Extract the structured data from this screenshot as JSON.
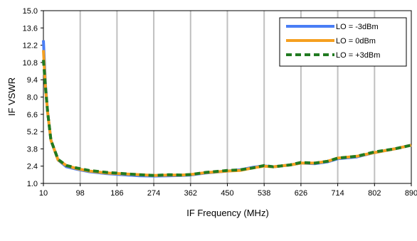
{
  "chart_data": {
    "type": "line",
    "title": "",
    "xlabel": "IF Frequency (MHz)",
    "ylabel": "IF VSWR",
    "xlim": [
      10,
      890
    ],
    "ylim": [
      1.0,
      15.0
    ],
    "x_ticks": [
      "10",
      "98",
      "186",
      "274",
      "362",
      "450",
      "538",
      "626",
      "714",
      "802",
      "890"
    ],
    "y_ticks": [
      "1.0",
      "2.4",
      "3.8",
      "5.2",
      "6.6",
      "8.0",
      "9.4",
      "10.8",
      "12.2",
      "13.6",
      "15.0"
    ],
    "grid": "vertical",
    "legend_position": "top-right",
    "series": [
      {
        "name": "LO = -3dBm",
        "color": "#4a7ef5",
        "style": "solid",
        "points": [
          [
            10,
            12.6
          ],
          [
            15,
            9.0
          ],
          [
            20,
            6.8
          ],
          [
            28,
            4.5
          ],
          [
            45,
            2.9
          ],
          [
            65,
            2.35
          ],
          [
            90,
            2.15
          ],
          [
            120,
            1.95
          ],
          [
            160,
            1.8
          ],
          [
            200,
            1.7
          ],
          [
            240,
            1.62
          ],
          [
            274,
            1.6
          ],
          [
            310,
            1.62
          ],
          [
            340,
            1.65
          ],
          [
            362,
            1.68
          ],
          [
            400,
            1.85
          ],
          [
            450,
            2.0
          ],
          [
            480,
            2.1
          ],
          [
            510,
            2.3
          ],
          [
            538,
            2.42
          ],
          [
            560,
            2.35
          ],
          [
            600,
            2.5
          ],
          [
            626,
            2.65
          ],
          [
            660,
            2.6
          ],
          [
            690,
            2.75
          ],
          [
            714,
            3.0
          ],
          [
            760,
            3.15
          ],
          [
            802,
            3.5
          ],
          [
            850,
            3.8
          ],
          [
            890,
            4.1
          ]
        ]
      },
      {
        "name": "LO =  0dBm",
        "color": "#f5a020",
        "style": "solid",
        "points": [
          [
            10,
            11.8
          ],
          [
            15,
            8.8
          ],
          [
            20,
            6.8
          ],
          [
            28,
            4.5
          ],
          [
            45,
            2.9
          ],
          [
            65,
            2.45
          ],
          [
            90,
            2.2
          ],
          [
            120,
            2.0
          ],
          [
            160,
            1.85
          ],
          [
            200,
            1.78
          ],
          [
            240,
            1.7
          ],
          [
            274,
            1.65
          ],
          [
            310,
            1.68
          ],
          [
            340,
            1.68
          ],
          [
            362,
            1.72
          ],
          [
            400,
            1.88
          ],
          [
            450,
            2.0
          ],
          [
            480,
            2.05
          ],
          [
            510,
            2.25
          ],
          [
            538,
            2.4
          ],
          [
            560,
            2.35
          ],
          [
            600,
            2.5
          ],
          [
            626,
            2.65
          ],
          [
            660,
            2.65
          ],
          [
            690,
            2.8
          ],
          [
            714,
            3.05
          ],
          [
            760,
            3.2
          ],
          [
            802,
            3.5
          ],
          [
            850,
            3.8
          ],
          [
            890,
            4.1
          ]
        ]
      },
      {
        "name": "LO = +3dBm",
        "color": "#217a21",
        "style": "dashed",
        "points": [
          [
            10,
            11.0
          ],
          [
            15,
            8.8
          ],
          [
            20,
            6.8
          ],
          [
            28,
            4.5
          ],
          [
            45,
            2.95
          ],
          [
            65,
            2.45
          ],
          [
            90,
            2.25
          ],
          [
            120,
            2.05
          ],
          [
            160,
            1.9
          ],
          [
            200,
            1.8
          ],
          [
            240,
            1.7
          ],
          [
            274,
            1.65
          ],
          [
            310,
            1.7
          ],
          [
            340,
            1.68
          ],
          [
            362,
            1.72
          ],
          [
            400,
            1.9
          ],
          [
            450,
            2.05
          ],
          [
            480,
            2.1
          ],
          [
            510,
            2.25
          ],
          [
            538,
            2.45
          ],
          [
            560,
            2.35
          ],
          [
            600,
            2.5
          ],
          [
            626,
            2.7
          ],
          [
            660,
            2.65
          ],
          [
            690,
            2.8
          ],
          [
            714,
            3.05
          ],
          [
            760,
            3.2
          ],
          [
            802,
            3.55
          ],
          [
            850,
            3.8
          ],
          [
            890,
            4.1
          ]
        ]
      }
    ]
  }
}
